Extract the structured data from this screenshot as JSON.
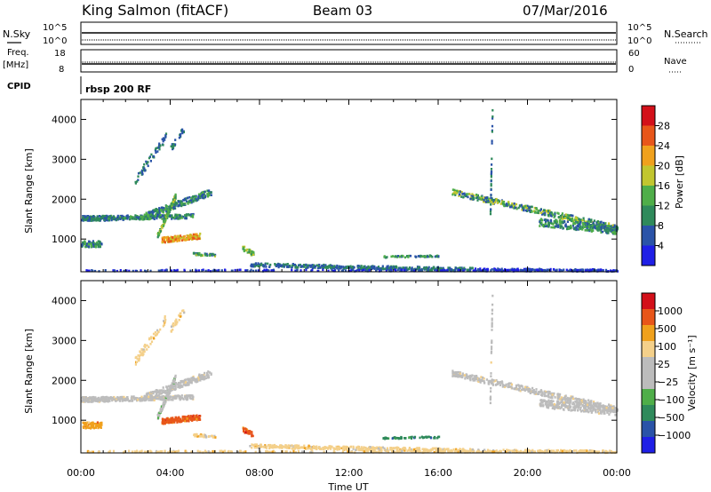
{
  "header": {
    "station": "King Salmon (fitACF)",
    "beam": "Beam 03",
    "date": "07/Mar/2016"
  },
  "noise_panel": {
    "left_label": "N.Sky",
    "right_label": "N.Search",
    "left_ticks": [
      "10^5",
      "10^0"
    ],
    "right_ticks": [
      "10^5",
      "10^0"
    ]
  },
  "freq_panel": {
    "left_label_1": "Freq.",
    "left_label_2": "[MHz]",
    "left_ticks": [
      "18",
      "8"
    ],
    "right_label": "Nave",
    "right_ticks": [
      "60",
      "0"
    ]
  },
  "cpid_panel": {
    "label": "CPID",
    "value": "rbsp 200 RF"
  },
  "colors": {
    "power_scale": [
      "#1f1fe6",
      "#2a53a8",
      "#2f8a5b",
      "#4fae49",
      "#c2c62f",
      "#f0a11d",
      "#e8561a",
      "#d3101a"
    ],
    "velocity_scale": [
      "#d3101a",
      "#e8561a",
      "#f0a11d",
      "#f4d08a",
      "#bcbcbc",
      "#bcbcbc",
      "#4fae49",
      "#2f8a5b",
      "#2a53a8",
      "#1f1fe6"
    ]
  },
  "chart_data": [
    {
      "type": "heatmap",
      "name": "power",
      "xlabel": "",
      "ylabel": "Slant Range [km]",
      "x_range_hours": [
        0,
        24
      ],
      "y_range_km": [
        180,
        4500
      ],
      "y_ticks": [
        "1000",
        "2000",
        "3000",
        "4000"
      ],
      "colorbar_label": "Power [dB]",
      "colorbar_ticks": [
        "4",
        "8",
        "12",
        "16",
        "20",
        "24",
        "28"
      ],
      "colorbar_range": [
        0,
        30
      ]
    },
    {
      "type": "heatmap",
      "name": "velocity",
      "xlabel": "Time UT",
      "ylabel": "Slant Range [km]",
      "x_range_hours": [
        0,
        24
      ],
      "x_ticks": [
        "00:00",
        "04:00",
        "08:00",
        "12:00",
        "16:00",
        "20:00",
        "00:00"
      ],
      "y_range_km": [
        180,
        4500
      ],
      "y_ticks": [
        "1000",
        "2000",
        "3000",
        "4000"
      ],
      "colorbar_label": "Velocity [m s⁻¹]",
      "colorbar_ticks": [
        "1000",
        "500",
        "100",
        "25",
        "−25",
        "−100",
        "−500",
        "−1000"
      ]
    }
  ]
}
